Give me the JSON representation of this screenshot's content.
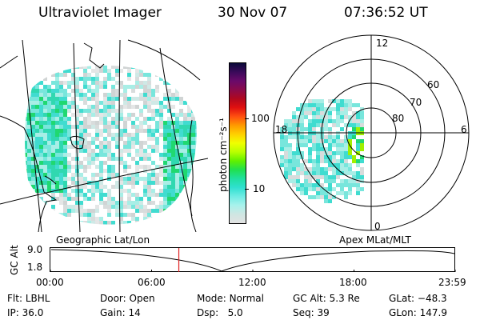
{
  "header": {
    "instrument": "Ultraviolet Imager",
    "date": "30 Nov 07",
    "time": "07:36:52 UT"
  },
  "colorbar": {
    "unit_label": "photon cm⁻²s⁻¹",
    "tick_labels": [
      "100",
      "10"
    ],
    "colors": [
      "#0a0a3a",
      "#3a0a5a",
      "#6a0a6a",
      "#8a0a4a",
      "#b0081e",
      "#e01010",
      "#ff5010",
      "#ff9a00",
      "#ffd000",
      "#f0ff00",
      "#b8ff00",
      "#60f000",
      "#20e050",
      "#20e0a0",
      "#30e0d0",
      "#70ece4",
      "#a8f2ec",
      "#cfe6e2",
      "#e2e2e2"
    ]
  },
  "polar": {
    "mlt_labels": {
      "top": "12",
      "left": "18",
      "right": "6",
      "bottom": "0"
    },
    "lat_labels": [
      "60",
      "70",
      "80"
    ]
  },
  "timeline": {
    "left_label": "Geographic Lat/Lon",
    "right_label": "Apex MLat/MLT",
    "y_axis_label": "GC Alt",
    "y_ticks": [
      "9.0",
      "1.8"
    ],
    "x_ticks": [
      "00:00",
      "06:00",
      "12:00",
      "18:00",
      "23:59"
    ],
    "current_time_hours": 7.614,
    "marker_color": "#e02020"
  },
  "info": {
    "row1": [
      {
        "label": "Flt:",
        "value": "LBHL"
      },
      {
        "label": "Door:",
        "value": "Open"
      },
      {
        "label": "Mode:",
        "value": "Normal"
      },
      {
        "label": "GC Alt:",
        "value": "5.3 Re"
      },
      {
        "label": "GLat:",
        "value": "−48.3"
      }
    ],
    "row2": [
      {
        "label": "IP:",
        "value": "36.0"
      },
      {
        "label": "Gain:",
        "value": "14"
      },
      {
        "label": "Dsp:",
        "value": "5.0"
      },
      {
        "label": "Seq:",
        "value": "39"
      },
      {
        "label": "GLon:",
        "value": "147.9"
      }
    ]
  }
}
